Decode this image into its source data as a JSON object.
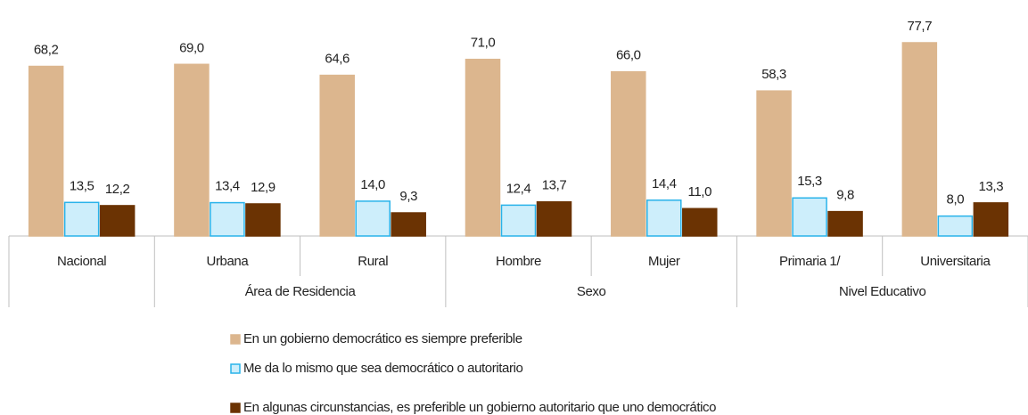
{
  "chart_data": {
    "type": "bar",
    "categories": [
      "Nacional",
      "Urbana",
      "Rural",
      "Hombre",
      "Mujer",
      "Primaria 1/",
      "Universitaria"
    ],
    "category_groups": [
      null,
      "Área de Residencia",
      "Área de Residencia",
      "Sexo",
      "Sexo",
      "Nivel Educativo",
      "Nivel Educativo"
    ],
    "series": [
      {
        "name": "En un gobierno democrático es siempre preferible",
        "color": "#dcb68e",
        "border": "#dcb68e",
        "values": [
          68.2,
          69.0,
          64.6,
          71.0,
          66.0,
          58.3,
          77.7
        ],
        "value_labels": [
          "68,2",
          "69,0",
          "64,6",
          "71,0",
          "66,0",
          "58,3",
          "77,7"
        ]
      },
      {
        "name": "Me da lo mismo que sea democrático o autoritario",
        "color": "#cdeefb",
        "border": "#29b3ea",
        "values": [
          13.5,
          13.4,
          14.0,
          12.4,
          14.4,
          15.3,
          8.0
        ],
        "value_labels": [
          "13,5",
          "13,4",
          "14,0",
          "12,4",
          "14,4",
          "15,3",
          "8,0"
        ]
      },
      {
        "name": "En algunas circunstancias, es preferible un gobierno autoritario que uno democrático",
        "color": "#6b3303",
        "border": "#6b3303",
        "values": [
          12.2,
          12.9,
          9.3,
          13.7,
          11.0,
          9.8,
          13.3
        ],
        "value_labels": [
          "12,2",
          "12,9",
          "9,3",
          "13,7",
          "11,0",
          "9,8",
          "13,3"
        ]
      }
    ]
  }
}
